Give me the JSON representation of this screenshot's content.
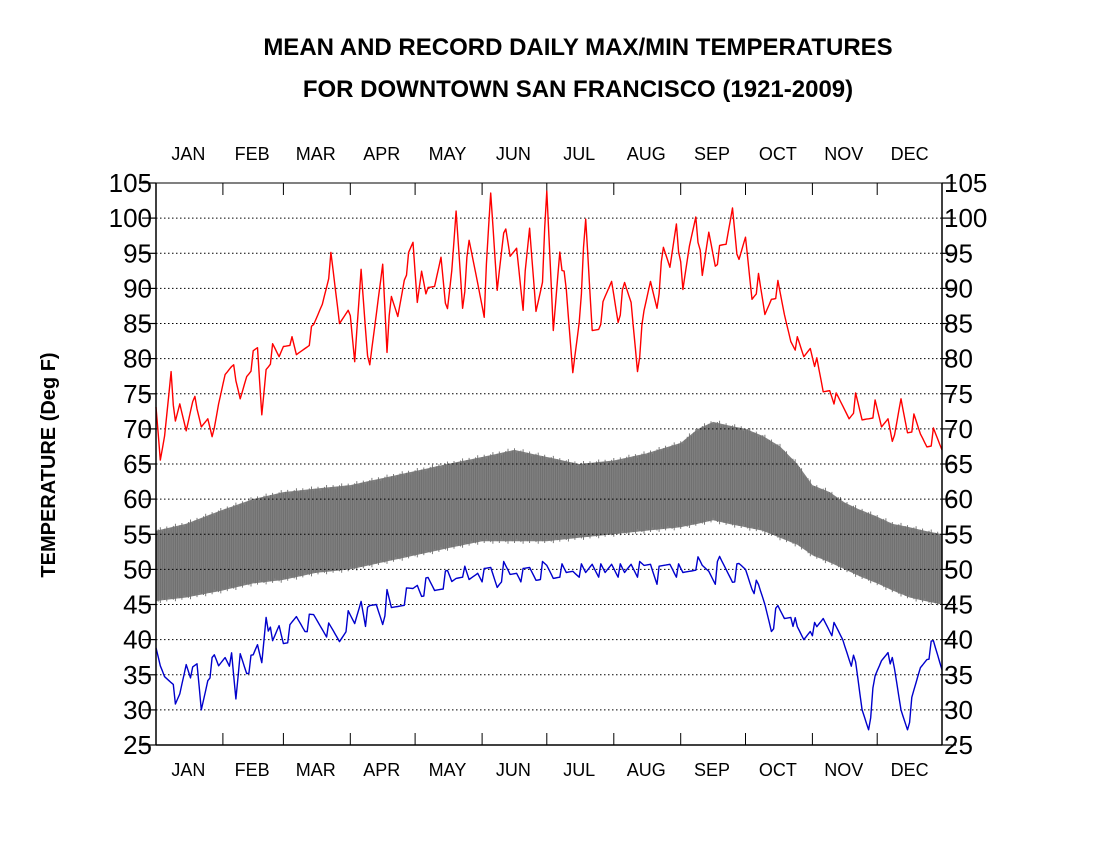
{
  "chart_data": {
    "type": "line",
    "title": "MEAN AND RECORD DAILY MAX/MIN TEMPERATURES",
    "subtitle": "FOR DOWNTOWN SAN FRANCISCO (1921-2009)",
    "ylabel": "TEMPERATURE (Deg F)",
    "xlabel": "",
    "ylim": [
      25,
      105
    ],
    "yticks": [
      "25",
      "30",
      "35",
      "40",
      "45",
      "50",
      "55",
      "60",
      "65",
      "70",
      "75",
      "80",
      "85",
      "90",
      "95",
      "100",
      "105"
    ],
    "months": [
      "JAN",
      "FEB",
      "MAR",
      "APR",
      "MAY",
      "JUN",
      "JUL",
      "AUG",
      "SEP",
      "OCT",
      "NOV",
      "DEC"
    ],
    "month_start_days": [
      1,
      32,
      60,
      91,
      121,
      152,
      182,
      213,
      244,
      274,
      305,
      335
    ],
    "days_in_year": 365,
    "grid": true,
    "colors": {
      "record_max": "#ff0000",
      "record_min": "#0000cc",
      "mean_band": "#808080",
      "grid": "#000000"
    },
    "series": [
      {
        "kind": "line",
        "day": [
          1,
          3,
          5,
          8,
          10,
          12,
          15,
          18,
          20,
          22,
          25,
          28,
          30,
          33,
          36,
          38,
          40,
          43,
          46,
          48,
          50,
          52,
          55,
          58,
          60,
          63,
          66,
          70,
          74,
          78,
          82,
          86,
          90,
          93,
          96,
          98,
          100,
          103,
          106,
          108,
          110,
          113,
          116,
          120,
          122,
          124,
          127,
          130,
          133,
          136,
          138,
          140,
          143,
          146,
          150,
          153,
          156,
          159,
          162,
          165,
          168,
          171,
          174,
          177,
          180,
          182,
          185,
          188,
          191,
          194,
          197,
          200,
          203,
          206,
          209,
          212,
          215,
          218,
          221,
          224,
          227,
          230,
          233,
          236,
          239,
          242,
          245,
          248,
          251,
          254,
          257,
          260,
          262,
          265,
          268,
          271,
          274,
          277,
          280,
          283,
          286,
          289,
          292,
          295,
          298,
          301,
          304,
          307,
          310,
          313,
          316,
          319,
          322,
          325,
          328,
          331,
          334,
          337,
          340,
          343,
          346,
          349,
          352,
          355,
          358,
          361,
          365
        ],
        "values": [
          72,
          65,
          69,
          79,
          70,
          73,
          70,
          75,
          72,
          70,
          72,
          69,
          73,
          78,
          80,
          76,
          74,
          78,
          80,
          81,
          72,
          79,
          81,
          80,
          82,
          83,
          80,
          82,
          84,
          88,
          94,
          85,
          88,
          79,
          93,
          85,
          78,
          86,
          94,
          82,
          88,
          86,
          92,
          96,
          88,
          93,
          89,
          90,
          95,
          86,
          92,
          101,
          88,
          96,
          91,
          87,
          103,
          90,
          99,
          94,
          96,
          88,
          98,
          87,
          92,
          103,
          84,
          96,
          89,
          78,
          86,
          99,
          84,
          85,
          88,
          91,
          86,
          90,
          88,
          79,
          86,
          91,
          88,
          95,
          93,
          100,
          89,
          96,
          101,
          91,
          98,
          94,
          95,
          96,
          102,
          93,
          97,
          89,
          91,
          86,
          89,
          90,
          86,
          83,
          82,
          80,
          82,
          79,
          75,
          76,
          74,
          73,
          72,
          74,
          71,
          72,
          73,
          70,
          72,
          68,
          74,
          70,
          71,
          69,
          68,
          69,
          67
        ]
      },
      {
        "kind": "line",
        "day": [
          1,
          3,
          5,
          8,
          10,
          12,
          15,
          18,
          20,
          22,
          25,
          28,
          30,
          33,
          36,
          38,
          40,
          43,
          46,
          48,
          50,
          52,
          55,
          58,
          60,
          63,
          66,
          70,
          74,
          78,
          82,
          86,
          90,
          93,
          96,
          98,
          100,
          103,
          106,
          108,
          110,
          113,
          116,
          120,
          122,
          124,
          127,
          130,
          133,
          136,
          138,
          140,
          143,
          146,
          150,
          153,
          156,
          159,
          162,
          165,
          168,
          171,
          174,
          177,
          180,
          182,
          185,
          188,
          191,
          194,
          197,
          200,
          203,
          206,
          209,
          212,
          215,
          218,
          221,
          224,
          227,
          230,
          233,
          236,
          239,
          242,
          245,
          248,
          251,
          254,
          257,
          260,
          262,
          265,
          268,
          271,
          274,
          277,
          280,
          283,
          286,
          289,
          292,
          295,
          298,
          301,
          304,
          307,
          310,
          313,
          316,
          319,
          322,
          325,
          328,
          331,
          334,
          337,
          340,
          343,
          346,
          349,
          352,
          355,
          358,
          361,
          365
        ],
        "values": [
          38,
          36,
          35,
          35,
          30,
          32,
          37,
          35,
          36,
          30,
          35,
          37,
          36,
          38,
          37,
          31,
          38,
          36,
          37,
          39,
          37,
          44,
          39,
          42,
          40,
          41,
          43,
          42,
          43,
          42,
          41,
          40,
          43,
          42,
          46,
          43,
          44,
          45,
          43,
          46,
          44,
          45,
          46,
          47,
          48,
          47,
          48,
          47,
          48,
          49,
          48,
          49,
          50,
          48,
          50,
          49,
          50,
          48,
          50,
          49,
          50,
          49,
          50,
          49,
          50,
          50,
          49,
          50,
          49,
          50,
          50,
          49,
          51,
          50,
          49,
          51,
          50,
          49,
          51,
          50,
          50,
          51,
          49,
          50,
          51,
          50,
          49,
          50,
          51,
          50,
          50,
          49,
          51,
          50,
          49,
          50,
          50,
          48,
          47,
          45,
          42,
          44,
          43,
          44,
          41,
          40,
          42,
          41,
          43,
          42,
          41,
          40,
          38,
          36,
          30,
          28,
          34,
          37,
          39,
          35,
          30,
          28,
          32,
          36,
          38,
          39,
          36
        ]
      },
      {
        "kind": "band",
        "day": [
          1,
          15,
          32,
          46,
          60,
          75,
          91,
          106,
          121,
          136,
          152,
          167,
          182,
          197,
          213,
          228,
          244,
          252,
          259,
          266,
          274,
          282,
          290,
          298,
          305,
          313,
          320,
          327,
          335,
          342,
          350,
          357,
          365
        ],
        "low": [
          45.5,
          46,
          47,
          48,
          48.5,
          49.5,
          50,
          51,
          52,
          53,
          54,
          54,
          54,
          54.5,
          55,
          55.5,
          56,
          56.5,
          57,
          56.5,
          56,
          55.5,
          54.5,
          53.5,
          52,
          51,
          50,
          49,
          48,
          47,
          46,
          45.5,
          45
        ],
        "high": [
          55.5,
          56.5,
          58.5,
          60,
          61,
          61.5,
          62,
          63,
          64,
          65,
          66,
          67,
          66,
          65,
          65.5,
          66.5,
          68,
          70,
          71,
          70.5,
          70,
          69,
          67.5,
          65,
          62,
          61,
          59.5,
          58.5,
          57.5,
          56.5,
          56,
          55.5,
          55
        ]
      }
    ]
  }
}
